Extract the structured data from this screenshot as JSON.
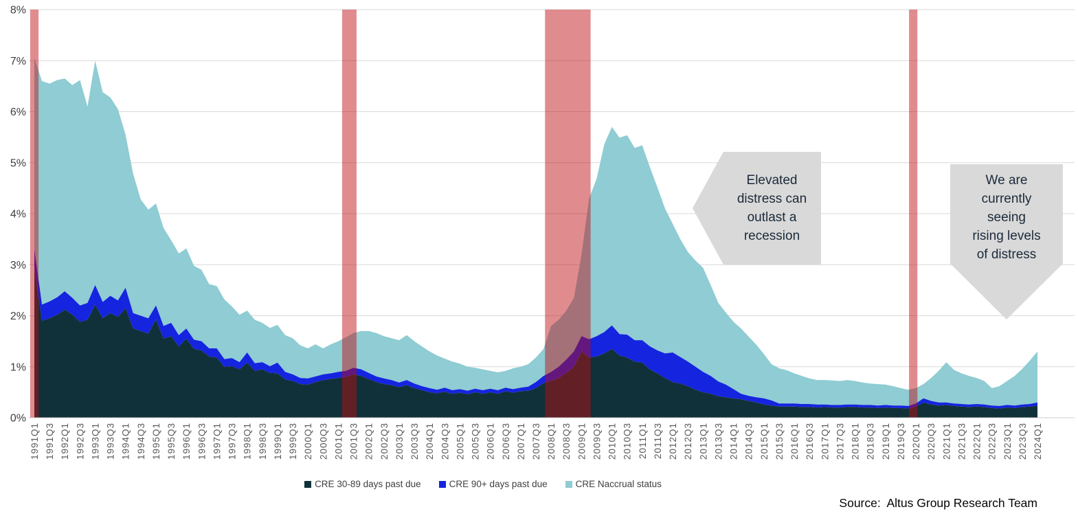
{
  "source": {
    "text": "Source:  Altus Group Research Team"
  },
  "annotations": {
    "elevated": {
      "lines": [
        "Elevated",
        "distress can",
        "outlast a",
        "recession"
      ]
    },
    "rising": {
      "lines": [
        "We are",
        "currently",
        "seeing",
        "rising levels",
        "of distress"
      ]
    }
  },
  "colors": {
    "series_dark": "#11313a",
    "series_blue": "#1524df",
    "series_teal": "#8fccd3",
    "recession_band": "rgba(190,10,16,0.47)",
    "gridline": "#d9d9d9",
    "axis_text": "#595959",
    "callout_fill": "#d9d9d9",
    "callout_text": "#1b2a3a"
  },
  "chart_data": {
    "type": "area",
    "stacked": true,
    "title": "",
    "xlabel": "",
    "ylabel": "",
    "ylim": [
      0,
      8
    ],
    "grid": true,
    "legend_position": "bottom",
    "y_ticks": [
      "0%",
      "1%",
      "2%",
      "3%",
      "4%",
      "5%",
      "6%",
      "7%",
      "8%"
    ],
    "x_tick_labels": [
      "1991Q1",
      "1991Q3",
      "1992Q1",
      "1992Q3",
      "1993Q1",
      "1993Q3",
      "1994Q1",
      "1994Q3",
      "1995Q1",
      "1995Q3",
      "1996Q1",
      "1996Q3",
      "1997Q1",
      "1997Q3",
      "1998Q1",
      "1998Q3",
      "1999Q1",
      "1999Q3",
      "2000Q1",
      "2000Q3",
      "2001Q1",
      "2001Q3",
      "2002Q1",
      "2002Q3",
      "2003Q1",
      "2003Q3",
      "2004Q1",
      "2004Q3",
      "2005Q1",
      "2005Q3",
      "2006Q1",
      "2006Q3",
      "2007Q1",
      "2007Q3",
      "2008Q1",
      "2008Q3",
      "2009Q1",
      "2009Q3",
      "2010Q1",
      "2010Q3",
      "2011Q1",
      "2011Q3",
      "2012Q1",
      "2012Q3",
      "2013Q1",
      "2013Q3",
      "2014Q1",
      "2014Q3",
      "2015Q1",
      "2015Q3",
      "2016Q1",
      "2016Q3",
      "2017Q1",
      "2017Q3",
      "2018Q1",
      "2018Q3",
      "2019Q1",
      "2019Q3",
      "2020Q1",
      "2020Q3",
      "2021Q1",
      "2021Q3",
      "2022Q1",
      "2022Q3",
      "2023Q1",
      "2023Q3",
      "2024Q1"
    ],
    "x": [
      "1991Q1",
      "1991Q2",
      "1991Q3",
      "1991Q4",
      "1992Q1",
      "1992Q2",
      "1992Q3",
      "1992Q4",
      "1993Q1",
      "1993Q2",
      "1993Q3",
      "1993Q4",
      "1994Q1",
      "1994Q2",
      "1994Q3",
      "1994Q4",
      "1995Q1",
      "1995Q2",
      "1995Q3",
      "1995Q4",
      "1996Q1",
      "1996Q2",
      "1996Q3",
      "1996Q4",
      "1997Q1",
      "1997Q2",
      "1997Q3",
      "1997Q4",
      "1998Q1",
      "1998Q2",
      "1998Q3",
      "1998Q4",
      "1999Q1",
      "1999Q2",
      "1999Q3",
      "1999Q4",
      "2000Q1",
      "2000Q2",
      "2000Q3",
      "2000Q4",
      "2001Q1",
      "2001Q2",
      "2001Q3",
      "2001Q4",
      "2002Q1",
      "2002Q2",
      "2002Q3",
      "2002Q4",
      "2003Q1",
      "2003Q2",
      "2003Q3",
      "2003Q4",
      "2004Q1",
      "2004Q2",
      "2004Q3",
      "2004Q4",
      "2005Q1",
      "2005Q2",
      "2005Q3",
      "2005Q4",
      "2006Q1",
      "2006Q2",
      "2006Q3",
      "2006Q4",
      "2007Q1",
      "2007Q2",
      "2007Q3",
      "2007Q4",
      "2008Q1",
      "2008Q2",
      "2008Q3",
      "2008Q4",
      "2009Q1",
      "2009Q2",
      "2009Q3",
      "2009Q4",
      "2010Q1",
      "2010Q2",
      "2010Q3",
      "2010Q4",
      "2011Q1",
      "2011Q2",
      "2011Q3",
      "2011Q4",
      "2012Q1",
      "2012Q2",
      "2012Q3",
      "2012Q4",
      "2013Q1",
      "2013Q2",
      "2013Q3",
      "2013Q4",
      "2014Q1",
      "2014Q2",
      "2014Q3",
      "2014Q4",
      "2015Q1",
      "2015Q2",
      "2015Q3",
      "2015Q4",
      "2016Q1",
      "2016Q2",
      "2016Q3",
      "2016Q4",
      "2017Q1",
      "2017Q2",
      "2017Q3",
      "2017Q4",
      "2018Q1",
      "2018Q2",
      "2018Q3",
      "2018Q4",
      "2019Q1",
      "2019Q2",
      "2019Q3",
      "2019Q4",
      "2020Q1",
      "2020Q2",
      "2020Q3",
      "2020Q4",
      "2021Q1",
      "2021Q2",
      "2021Q3",
      "2021Q4",
      "2022Q1",
      "2022Q2",
      "2022Q3",
      "2022Q4",
      "2023Q1",
      "2023Q2",
      "2023Q3",
      "2023Q4",
      "2024Q1"
    ],
    "series": [
      {
        "name": "CRE 30-89 days past due",
        "color": "#11313a",
        "values": [
          2.95,
          1.9,
          1.95,
          2.02,
          2.12,
          2.02,
          1.88,
          1.92,
          2.22,
          1.95,
          2.05,
          1.98,
          2.15,
          1.75,
          1.7,
          1.65,
          1.93,
          1.55,
          1.6,
          1.4,
          1.55,
          1.35,
          1.32,
          1.2,
          1.18,
          1.0,
          1.01,
          0.95,
          1.08,
          0.92,
          0.95,
          0.88,
          0.87,
          0.75,
          0.72,
          0.66,
          0.65,
          0.7,
          0.74,
          0.76,
          0.78,
          0.8,
          0.85,
          0.82,
          0.76,
          0.7,
          0.66,
          0.64,
          0.6,
          0.64,
          0.58,
          0.54,
          0.5,
          0.48,
          0.51,
          0.47,
          0.49,
          0.46,
          0.5,
          0.47,
          0.5,
          0.47,
          0.52,
          0.49,
          0.52,
          0.53,
          0.58,
          0.68,
          0.72,
          0.78,
          0.88,
          1.0,
          1.3,
          1.18,
          1.2,
          1.26,
          1.35,
          1.22,
          1.18,
          1.1,
          1.08,
          0.95,
          0.87,
          0.78,
          0.7,
          0.67,
          0.62,
          0.55,
          0.5,
          0.47,
          0.42,
          0.4,
          0.38,
          0.36,
          0.33,
          0.3,
          0.26,
          0.24,
          0.22,
          0.22,
          0.22,
          0.21,
          0.21,
          0.2,
          0.21,
          0.2,
          0.2,
          0.21,
          0.21,
          0.2,
          0.2,
          0.19,
          0.2,
          0.19,
          0.19,
          0.18,
          0.22,
          0.3,
          0.26,
          0.24,
          0.25,
          0.23,
          0.22,
          0.21,
          0.22,
          0.21,
          0.19,
          0.18,
          0.2,
          0.19,
          0.21,
          0.22,
          0.24
        ]
      },
      {
        "name": "CRE 90+ days past due",
        "color": "#1524df",
        "values": [
          0.35,
          0.32,
          0.33,
          0.34,
          0.36,
          0.33,
          0.32,
          0.33,
          0.38,
          0.32,
          0.34,
          0.32,
          0.4,
          0.3,
          0.3,
          0.3,
          0.27,
          0.25,
          0.26,
          0.22,
          0.2,
          0.18,
          0.18,
          0.16,
          0.18,
          0.15,
          0.16,
          0.14,
          0.2,
          0.15,
          0.14,
          0.13,
          0.21,
          0.15,
          0.13,
          0.12,
          0.12,
          0.11,
          0.11,
          0.11,
          0.12,
          0.12,
          0.13,
          0.13,
          0.12,
          0.11,
          0.11,
          0.1,
          0.09,
          0.1,
          0.09,
          0.08,
          0.08,
          0.07,
          0.08,
          0.07,
          0.07,
          0.07,
          0.07,
          0.07,
          0.07,
          0.07,
          0.07,
          0.07,
          0.07,
          0.08,
          0.12,
          0.14,
          0.18,
          0.22,
          0.26,
          0.3,
          0.3,
          0.36,
          0.4,
          0.42,
          0.46,
          0.42,
          0.45,
          0.42,
          0.44,
          0.45,
          0.45,
          0.48,
          0.58,
          0.52,
          0.48,
          0.45,
          0.4,
          0.35,
          0.29,
          0.25,
          0.18,
          0.11,
          0.1,
          0.1,
          0.12,
          0.1,
          0.06,
          0.06,
          0.06,
          0.06,
          0.06,
          0.06,
          0.05,
          0.05,
          0.05,
          0.05,
          0.05,
          0.05,
          0.05,
          0.05,
          0.05,
          0.05,
          0.05,
          0.05,
          0.06,
          0.08,
          0.07,
          0.06,
          0.05,
          0.05,
          0.05,
          0.05,
          0.05,
          0.05,
          0.05,
          0.05,
          0.05,
          0.05,
          0.05,
          0.05,
          0.06
        ]
      },
      {
        "name": "CRE Naccrual status",
        "color": "#8fccd3",
        "values": [
          3.75,
          4.38,
          4.27,
          4.26,
          4.17,
          4.17,
          4.42,
          3.85,
          4.4,
          4.11,
          3.89,
          3.75,
          3.0,
          2.73,
          2.28,
          2.13,
          2.0,
          1.92,
          1.62,
          1.6,
          1.57,
          1.45,
          1.4,
          1.26,
          1.22,
          1.17,
          1.01,
          0.93,
          0.82,
          0.85,
          0.77,
          0.75,
          0.74,
          0.72,
          0.71,
          0.64,
          0.59,
          0.63,
          0.51,
          0.57,
          0.6,
          0.66,
          0.68,
          0.75,
          0.82,
          0.85,
          0.83,
          0.82,
          0.83,
          0.88,
          0.83,
          0.78,
          0.72,
          0.67,
          0.57,
          0.56,
          0.5,
          0.47,
          0.41,
          0.41,
          0.35,
          0.35,
          0.33,
          0.41,
          0.41,
          0.44,
          0.48,
          0.53,
          0.9,
          0.92,
          0.96,
          1.05,
          1.6,
          2.76,
          3.09,
          3.68,
          3.89,
          3.85,
          3.91,
          3.77,
          3.82,
          3.51,
          3.19,
          2.84,
          2.52,
          2.31,
          2.15,
          2.08,
          2.04,
          1.78,
          1.54,
          1.41,
          1.32,
          1.28,
          1.16,
          1.03,
          0.87,
          0.71,
          0.69,
          0.65,
          0.59,
          0.55,
          0.5,
          0.48,
          0.48,
          0.48,
          0.47,
          0.48,
          0.46,
          0.44,
          0.42,
          0.42,
          0.4,
          0.38,
          0.34,
          0.32,
          0.3,
          0.28,
          0.45,
          0.62,
          0.79,
          0.66,
          0.6,
          0.56,
          0.51,
          0.46,
          0.34,
          0.39,
          0.47,
          0.58,
          0.7,
          0.85,
          1.0
        ]
      }
    ],
    "recession_bands": [
      {
        "start": -0.55,
        "end": 0.55
      },
      {
        "start": 40.5,
        "end": 42.4
      },
      {
        "start": 67.2,
        "end": 73.2
      },
      {
        "start": 115.1,
        "end": 116.2
      }
    ]
  }
}
